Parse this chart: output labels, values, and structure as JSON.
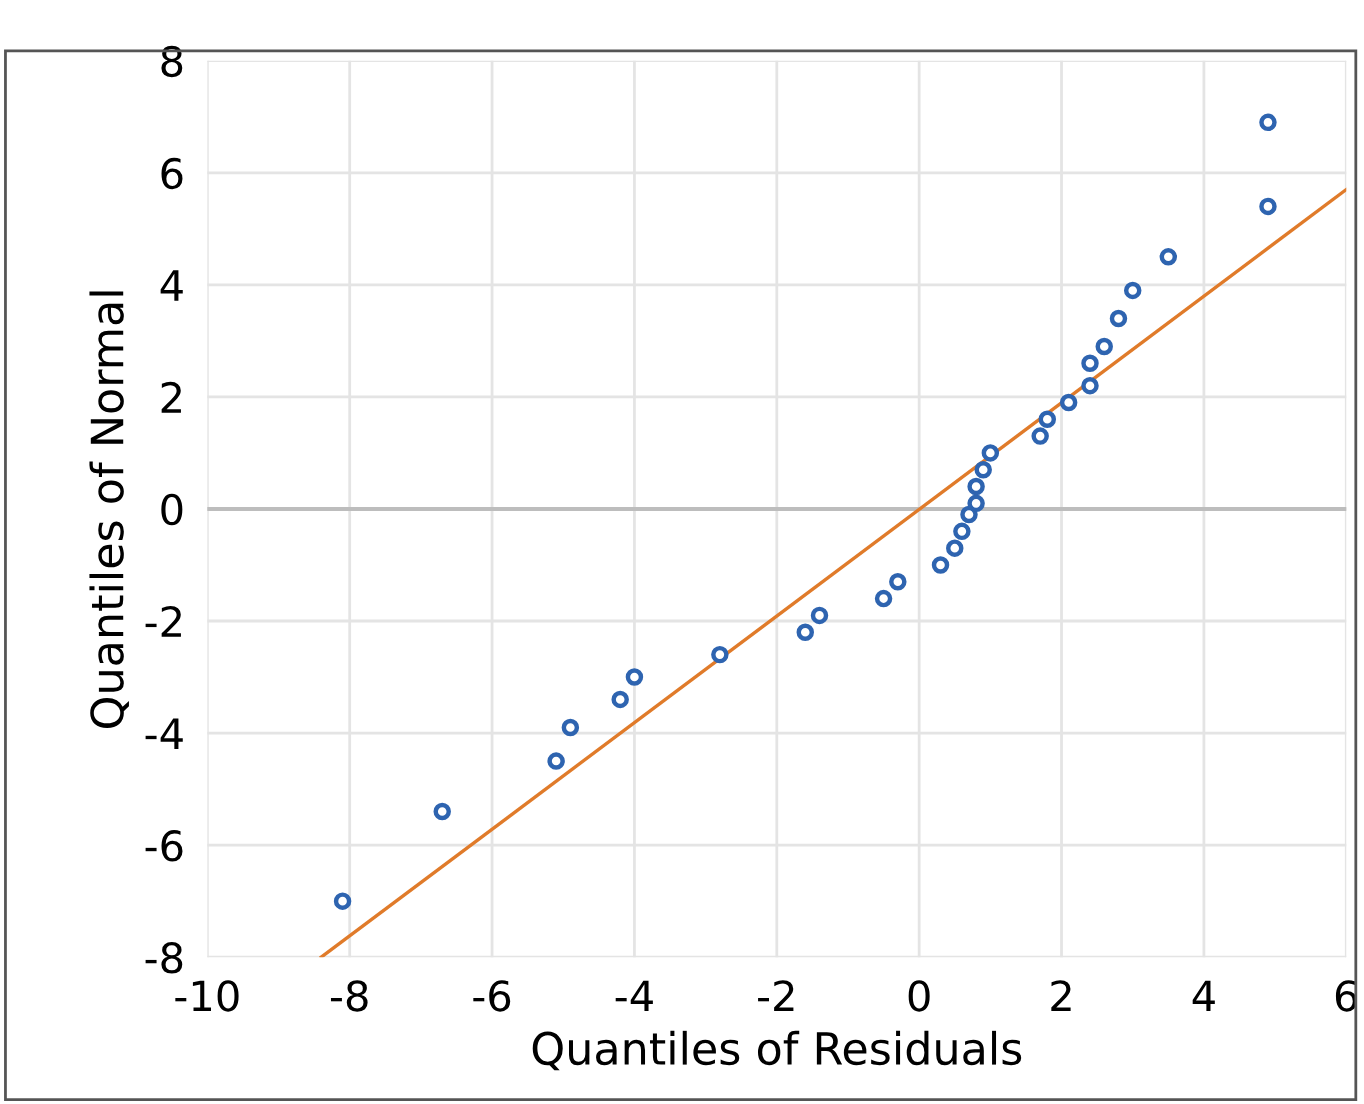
{
  "chart_data": {
    "type": "scatter",
    "xlabel": "Quantiles of Residuals",
    "ylabel": "Quantiles of Normal",
    "xlim": [
      -10,
      6
    ],
    "ylim": [
      -8,
      8
    ],
    "xticks": [
      -10,
      -8,
      -6,
      -4,
      -2,
      0,
      2,
      4,
      6
    ],
    "yticks": [
      -8,
      -6,
      -4,
      -2,
      0,
      2,
      4,
      6,
      8
    ],
    "grid": true,
    "marker": "circle",
    "series": [
      {
        "color": "#2e64b0",
        "x": [
          -8.1,
          -6.7,
          -5.1,
          -4.9,
          -4.2,
          -4.0,
          -2.8,
          -1.6,
          -1.4,
          -0.5,
          -0.3,
          0.3,
          0.5,
          0.6,
          0.7,
          0.8,
          0.8,
          0.9,
          1.0,
          1.7,
          1.8,
          2.1,
          2.4,
          2.4,
          2.6,
          2.8,
          3.0,
          3.5,
          4.9,
          4.9
        ],
        "values": [
          -7.0,
          -5.4,
          -4.5,
          -3.9,
          -3.4,
          -3.0,
          -2.6,
          -2.2,
          -1.9,
          -1.6,
          -1.3,
          -1.0,
          -0.7,
          -0.4,
          -0.1,
          0.1,
          0.4,
          0.7,
          1.0,
          1.3,
          1.6,
          1.9,
          2.2,
          2.6,
          2.9,
          3.4,
          3.9,
          4.5,
          5.4,
          6.9
        ]
      },
      {
        "type": "line",
        "color": "#e07b2a",
        "marker": "none",
        "x": [
          -8.4,
          6.0
        ],
        "values": [
          -8.0,
          5.7
        ]
      }
    ]
  }
}
